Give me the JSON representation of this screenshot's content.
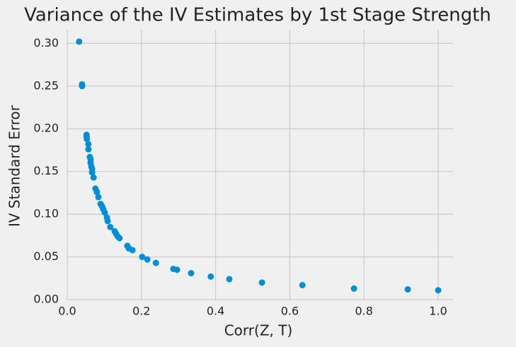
{
  "chart_data": {
    "type": "scatter",
    "title": "Variance of the IV Estimates by 1st Stage Strength",
    "x_label": "Corr(Z, T)",
    "y_label": "IV Standard Error",
    "color": "#008fd5",
    "grid": true,
    "xlim": [
      0,
      1.04
    ],
    "ylim": [
      0,
      0.316
    ],
    "xticks": [
      {
        "value": 0,
        "label": "0.0"
      },
      {
        "value": 0.2,
        "label": "0.2"
      },
      {
        "value": 0.4,
        "label": "0.4"
      },
      {
        "value": 0.6,
        "label": "0.6"
      },
      {
        "value": 0.8,
        "label": "0.8"
      },
      {
        "value": 1,
        "label": "1.0"
      }
    ],
    "yticks": [
      {
        "value": 0,
        "label": "0.00"
      },
      {
        "value": 0.05,
        "label": "0.05"
      },
      {
        "value": 0.1,
        "label": "0.10"
      },
      {
        "value": 0.15,
        "label": "0.15"
      },
      {
        "value": 0.2,
        "label": "0.20"
      },
      {
        "value": 0.25,
        "label": "0.25"
      },
      {
        "value": 0.3,
        "label": "0.30"
      }
    ],
    "x": [
      0.032,
      0.04,
      0.04,
      0.052,
      0.052,
      0.053,
      0.057,
      0.057,
      0.061,
      0.063,
      0.063,
      0.065,
      0.067,
      0.067,
      0.071,
      0.076,
      0.08,
      0.084,
      0.09,
      0.094,
      0.097,
      0.101,
      0.107,
      0.109,
      0.116,
      0.128,
      0.132,
      0.136,
      0.141,
      0.162,
      0.166,
      0.176,
      0.202,
      0.216,
      0.239,
      0.286,
      0.296,
      0.334,
      0.387,
      0.437,
      0.525,
      0.634,
      0.773,
      0.918,
      1.0
    ],
    "values": [
      0.302,
      0.252,
      0.25,
      0.193,
      0.191,
      0.188,
      0.182,
      0.176,
      0.167,
      0.164,
      0.16,
      0.156,
      0.153,
      0.149,
      0.143,
      0.13,
      0.126,
      0.12,
      0.112,
      0.109,
      0.106,
      0.102,
      0.096,
      0.092,
      0.085,
      0.08,
      0.077,
      0.074,
      0.072,
      0.063,
      0.06,
      0.058,
      0.05,
      0.047,
      0.043,
      0.036,
      0.035,
      0.031,
      0.027,
      0.024,
      0.02,
      0.017,
      0.013,
      0.012,
      0.011
    ]
  }
}
